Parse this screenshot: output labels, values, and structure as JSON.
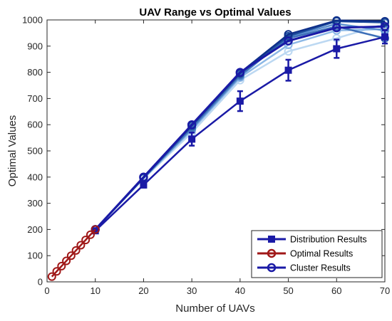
{
  "chart_data": {
    "type": "line",
    "title": "UAV Range vs Optimal Values",
    "xlabel": "Number of UAVs",
    "ylabel": "Optimal Values",
    "xlim": [
      0,
      70
    ],
    "ylim": [
      0,
      1000
    ],
    "xticks": [
      0,
      10,
      20,
      30,
      40,
      50,
      60,
      70
    ],
    "yticks": [
      0,
      100,
      200,
      300,
      400,
      500,
      600,
      700,
      800,
      900,
      1000
    ],
    "grid": false,
    "legend_position": "bottom-right",
    "colors": {
      "distribution": "#1a1aa6",
      "optimal": "#a01818",
      "cluster": "#1a1aa6",
      "background_lines": [
        "#0e2f8a",
        "#1f4f9e",
        "#3d6fb8",
        "#5b8fd0",
        "#8cb8e6",
        "#bcd8f2"
      ]
    },
    "legend": [
      {
        "label": "Distribution Results",
        "series": "distribution",
        "marker": "square"
      },
      {
        "label": "Optimal Results",
        "series": "optimal",
        "marker": "circle"
      },
      {
        "label": "Cluster Results",
        "series": "cluster",
        "marker": "circle"
      }
    ],
    "series": [
      {
        "name": "Distribution Results",
        "key": "distribution",
        "x": [
          10,
          20,
          30,
          40,
          50,
          60,
          70
        ],
        "y": [
          195,
          370,
          545,
          690,
          808,
          890,
          935
        ],
        "err": [
          5,
          10,
          25,
          38,
          40,
          35,
          25
        ]
      },
      {
        "name": "Optimal Results",
        "key": "optimal",
        "x": [
          1,
          2,
          3,
          4,
          5,
          6,
          7,
          8,
          9,
          10
        ],
        "y": [
          20,
          40,
          60,
          80,
          100,
          120,
          140,
          160,
          180,
          200
        ]
      },
      {
        "name": "Cluster Results",
        "key": "cluster",
        "x": [
          10,
          20,
          30,
          40,
          50,
          60,
          70
        ],
        "y": [
          200,
          400,
          600,
          800,
          920,
          970,
          975
        ]
      }
    ],
    "background_series": [
      {
        "x": [
          10,
          20,
          30,
          40,
          50,
          60,
          70
        ],
        "y": [
          200,
          398,
          598,
          798,
          945,
          998,
          995
        ]
      },
      {
        "x": [
          10,
          20,
          30,
          40,
          50,
          60,
          70
        ],
        "y": [
          200,
          398,
          596,
          795,
          938,
          995,
          990
        ]
      },
      {
        "x": [
          10,
          20,
          30,
          40,
          50,
          60,
          70
        ],
        "y": [
          200,
          397,
          590,
          790,
          930,
          975,
          930
        ]
      },
      {
        "x": [
          10,
          20,
          30,
          40,
          50,
          60,
          70
        ],
        "y": [
          200,
          396,
          585,
          785,
          935,
          985,
          960
        ]
      },
      {
        "x": [
          10,
          20,
          30,
          40,
          50,
          60,
          70
        ],
        "y": [
          200,
          395,
          580,
          780,
          905,
          960,
          965
        ]
      },
      {
        "x": [
          10,
          20,
          30,
          40,
          50,
          60,
          70
        ],
        "y": [
          200,
          394,
          570,
          770,
          880,
          930,
          985
        ]
      }
    ]
  }
}
